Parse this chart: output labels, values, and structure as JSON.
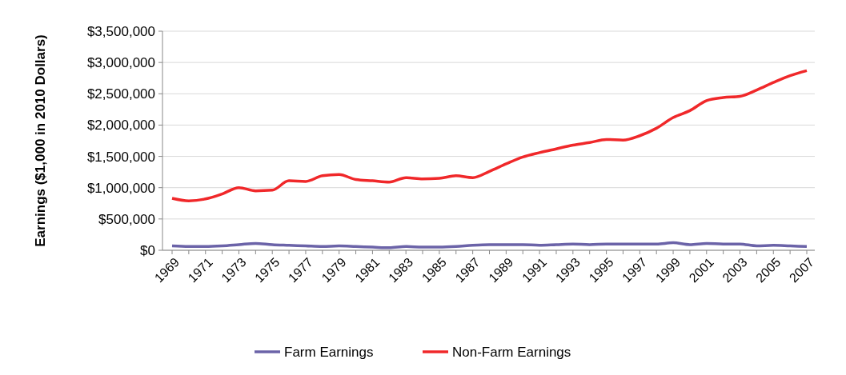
{
  "chart_data": {
    "type": "line",
    "ylabel": "Earnings ($1,000 in 2010 Dollars)",
    "categories": [
      "1969",
      null,
      "1971",
      null,
      "1973",
      null,
      "1975",
      null,
      "1977",
      null,
      "1979",
      null,
      "1981",
      null,
      "1983",
      null,
      "1985",
      null,
      "1987",
      null,
      "1989",
      null,
      "1991",
      null,
      "1993",
      null,
      "1995",
      null,
      "1997",
      null,
      "1999",
      null,
      "2001",
      null,
      "2003",
      null,
      "2005",
      null,
      "2007"
    ],
    "series": [
      {
        "name": "Farm Earnings",
        "color": "#6b63a8",
        "values": [
          70000,
          60000,
          60000,
          70000,
          90000,
          110000,
          90000,
          80000,
          70000,
          60000,
          70000,
          60000,
          50000,
          40000,
          60000,
          50000,
          50000,
          60000,
          80000,
          90000,
          90000,
          90000,
          80000,
          90000,
          100000,
          90000,
          100000,
          100000,
          100000,
          100000,
          120000,
          90000,
          110000,
          100000,
          100000,
          70000,
          80000,
          70000,
          60000
        ]
      },
      {
        "name": "Non-Farm Earnings",
        "color": "#f0282a",
        "values": [
          830000,
          790000,
          820000,
          900000,
          1000000,
          950000,
          960000,
          1110000,
          1100000,
          1190000,
          1210000,
          1130000,
          1110000,
          1090000,
          1160000,
          1140000,
          1150000,
          1190000,
          1160000,
          1260000,
          1380000,
          1490000,
          1560000,
          1620000,
          1680000,
          1720000,
          1770000,
          1760000,
          1830000,
          1950000,
          2120000,
          2230000,
          2390000,
          2440000,
          2460000,
          2560000,
          2680000,
          2790000,
          2870000
        ]
      }
    ],
    "ylim": [
      0,
      3500000
    ],
    "yticks": [
      {
        "value": 0,
        "label": "$0"
      },
      {
        "value": 500000,
        "label": "$500,000"
      },
      {
        "value": 1000000,
        "label": "$1,000,000"
      },
      {
        "value": 1500000,
        "label": "$1,500,000"
      },
      {
        "value": 2000000,
        "label": "$2,000,000"
      },
      {
        "value": 2500000,
        "label": "$2,500,000"
      },
      {
        "value": 3000000,
        "label": "$3,000,000"
      },
      {
        "value": 3500000,
        "label": "$3,500,000"
      }
    ],
    "grid": "y",
    "legend": "bottom",
    "marker": "none",
    "line_style": "solid"
  }
}
